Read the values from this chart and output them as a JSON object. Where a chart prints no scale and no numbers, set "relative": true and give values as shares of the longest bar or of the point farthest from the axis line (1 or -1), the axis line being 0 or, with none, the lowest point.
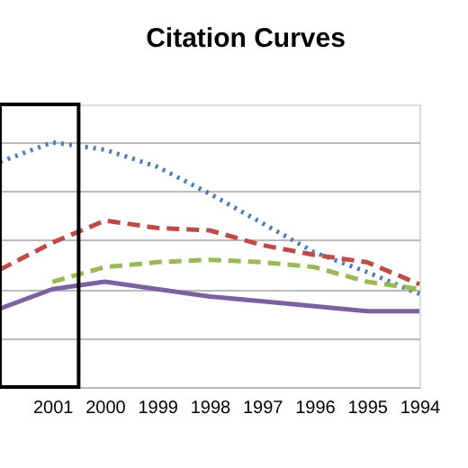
{
  "chart_data": {
    "type": "line",
    "title": "Citation Curves",
    "relative": true,
    "grid": "y",
    "marker": "none",
    "categories": [
      null,
      "2001",
      "2000",
      "1999",
      "1998",
      "1997",
      "1996",
      "1995",
      "1994"
    ],
    "series": [
      {
        "color": "#4a7ebb",
        "line_style": "dotted",
        "values": [
          0.92,
          1,
          0.97,
          0.9,
          0.79,
          0.67,
          0.55,
          0.47,
          0.38
        ]
      },
      {
        "color": "#be4b48",
        "line_style": "dashed",
        "values": [
          0.48,
          0.59,
          0.68,
          0.65,
          0.64,
          0.58,
          0.54,
          0.51,
          0.42
        ]
      },
      {
        "color": "#98b954",
        "line_style": "dashed",
        "values": [
          null,
          0.43,
          0.49,
          0.51,
          0.52,
          0.51,
          0.49,
          0.43,
          0.4
        ]
      },
      {
        "color": "#7d60a0",
        "line_style": "solid",
        "values": [
          0.32,
          0.4,
          0.43,
          0.4,
          0.37,
          0.35,
          0.33,
          0.31,
          0.31
        ]
      }
    ]
  }
}
